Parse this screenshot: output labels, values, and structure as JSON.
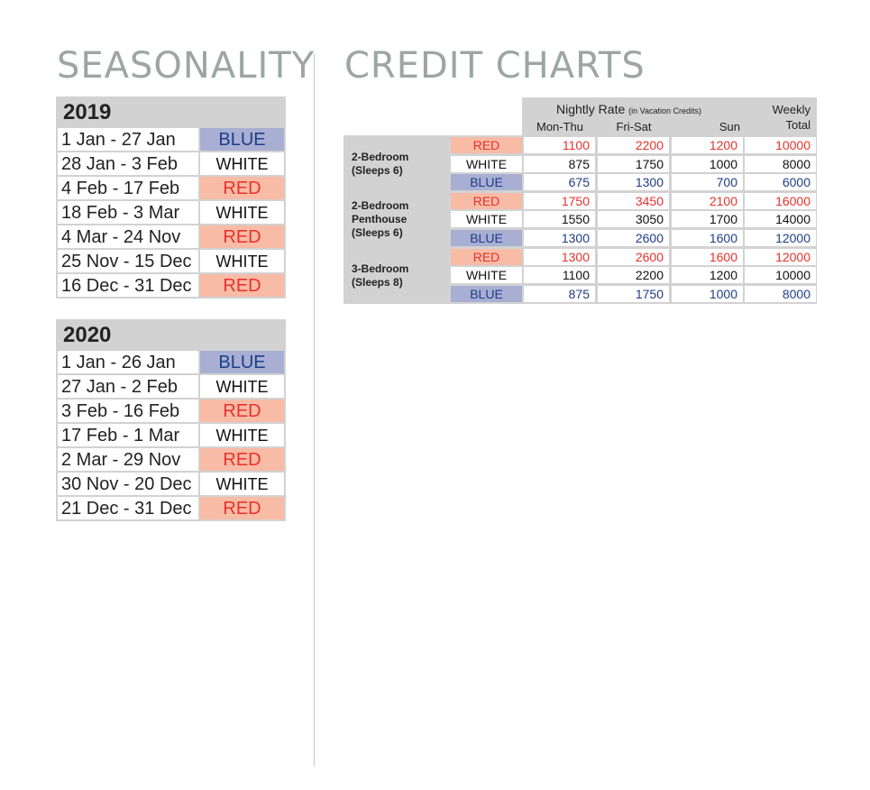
{
  "headings": {
    "seasonality": "SEASONALITY",
    "credit_charts": "CREDIT CHARTS"
  },
  "seasonality": [
    {
      "year": "2019",
      "rows": [
        {
          "dates": "1 Jan - 27 Jan",
          "season": "BLUE"
        },
        {
          "dates": "28 Jan - 3 Feb",
          "season": "WHITE"
        },
        {
          "dates": "4 Feb - 17 Feb",
          "season": "RED"
        },
        {
          "dates": "18 Feb - 3 Mar",
          "season": "WHITE"
        },
        {
          "dates": "4 Mar - 24 Nov",
          "season": "RED"
        },
        {
          "dates": "25 Nov - 15 Dec",
          "season": "WHITE"
        },
        {
          "dates": "16 Dec - 31 Dec",
          "season": "RED"
        }
      ]
    },
    {
      "year": "2020",
      "rows": [
        {
          "dates": "1 Jan - 26 Jan",
          "season": "BLUE"
        },
        {
          "dates": "27 Jan - 2 Feb",
          "season": "WHITE"
        },
        {
          "dates": "3 Feb - 16 Feb",
          "season": "RED"
        },
        {
          "dates": "17 Feb - 1 Mar",
          "season": "WHITE"
        },
        {
          "dates": "2 Mar - 29 Nov",
          "season": "RED"
        },
        {
          "dates": "30 Nov - 20 Dec",
          "season": "WHITE"
        },
        {
          "dates": "21 Dec - 31 Dec",
          "season": "RED"
        }
      ]
    }
  ],
  "credit_chart": {
    "nightly_label": "Nightly Rate",
    "nightly_note": "(in Vacation Credits)",
    "weekly_label_1": "Weekly",
    "weekly_label_2": "Total",
    "columns": [
      "Mon-Thu",
      "Fri-Sat",
      "Sun"
    ],
    "units": [
      {
        "name_lines": [
          "2-Bedroom",
          "(Sleeps 6)"
        ],
        "rows": [
          {
            "season": "RED",
            "values": [
              "1100",
              "2200",
              "1200",
              "10000"
            ]
          },
          {
            "season": "WHITE",
            "values": [
              "875",
              "1750",
              "1000",
              "8000"
            ]
          },
          {
            "season": "BLUE",
            "values": [
              "675",
              "1300",
              "700",
              "6000"
            ]
          }
        ]
      },
      {
        "name_lines": [
          "2-Bedroom",
          "Penthouse",
          "(Sleeps 6)"
        ],
        "rows": [
          {
            "season": "RED",
            "values": [
              "1750",
              "3450",
              "2100",
              "16000"
            ]
          },
          {
            "season": "WHITE",
            "values": [
              "1550",
              "3050",
              "1700",
              "14000"
            ]
          },
          {
            "season": "BLUE",
            "values": [
              "1300",
              "2600",
              "1600",
              "12000"
            ]
          }
        ]
      },
      {
        "name_lines": [
          "3-Bedroom",
          "(Sleeps 8)"
        ],
        "rows": [
          {
            "season": "RED",
            "values": [
              "1300",
              "2600",
              "1600",
              "12000"
            ]
          },
          {
            "season": "WHITE",
            "values": [
              "1100",
              "2200",
              "1200",
              "10000"
            ]
          },
          {
            "season": "BLUE",
            "values": [
              "875",
              "1750",
              "1000",
              "8000"
            ]
          }
        ]
      }
    ]
  },
  "colors": {
    "heading": "#9ca6a2",
    "blue_bg": "#a8afd3",
    "blue_text": "#1d3e87",
    "red_bg": "#f7bba6",
    "red_text": "#e8312b",
    "grid": "#d2d2d2"
  }
}
